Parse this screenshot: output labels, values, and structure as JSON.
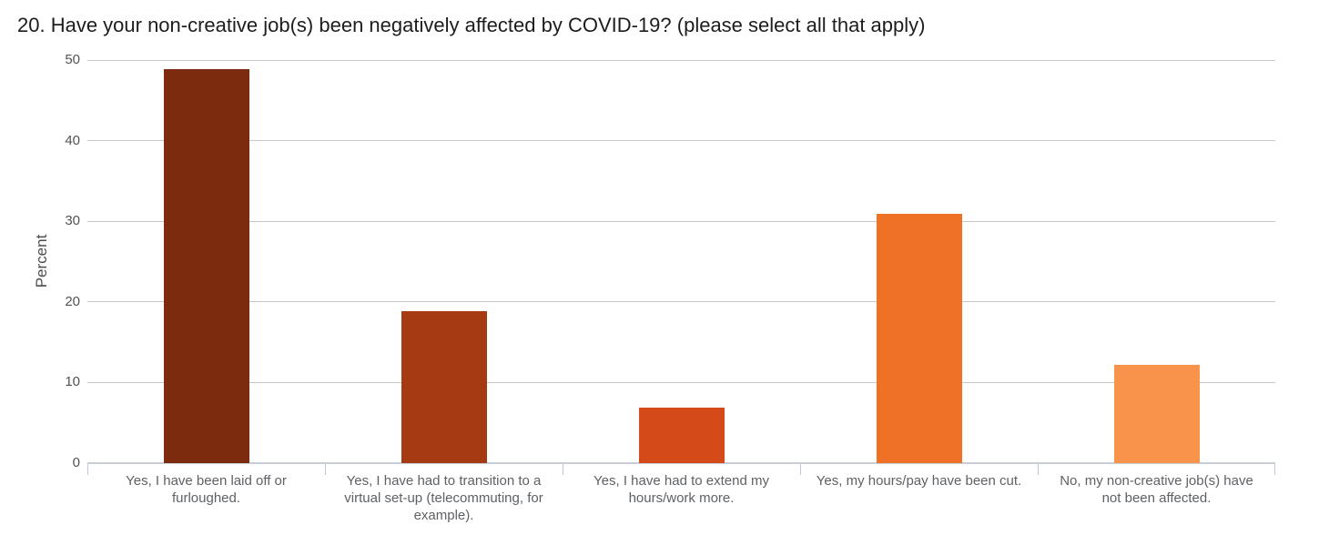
{
  "title": "20. Have your non-creative job(s) been negatively affected by COVID-19? (please select all that apply)",
  "chart_data": {
    "type": "bar",
    "title": "20. Have your non-creative job(s) been negatively affected by COVID-19? (please select all that apply)",
    "xlabel": "",
    "ylabel": "Percent",
    "ylim": [
      0,
      50
    ],
    "yticks": [
      0,
      10,
      20,
      30,
      40,
      50
    ],
    "grid": "horizontal gridlines on",
    "legend": "none",
    "categories": [
      "Yes, I have been laid off or furloughed.",
      "Yes, I have had to transition to a virtual set-up (telecommuting, for example).",
      "Yes, I have had to extend my hours/work more.",
      "Yes, my hours/pay have been cut.",
      "No, my non-creative job(s) have not been affected."
    ],
    "values": [
      48.9,
      18.8,
      6.9,
      30.9,
      12.2
    ],
    "bar_colors": [
      "#7C2B0E",
      "#A63A12",
      "#D44A19",
      "#EE7126",
      "#F9934B"
    ],
    "grid_color": "#c6c6c6",
    "axis_line_color": "#c9cdd6",
    "boundary_tick_color": "#bcc7dc"
  }
}
